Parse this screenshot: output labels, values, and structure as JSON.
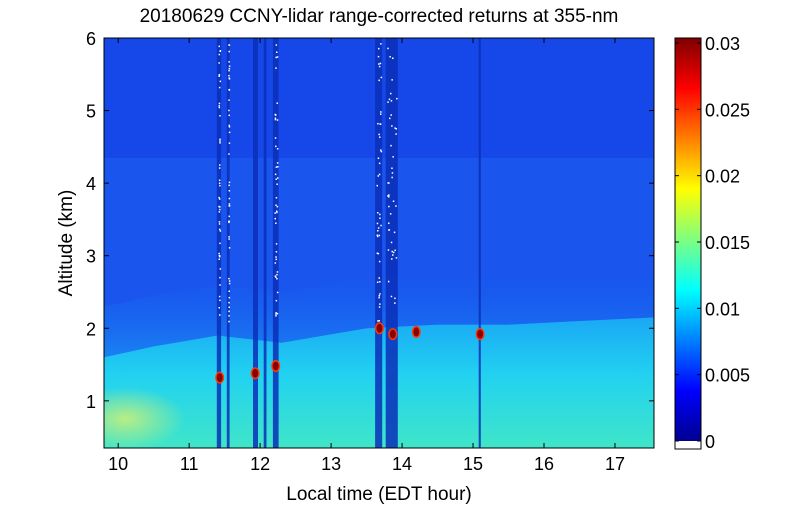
{
  "chart_data": {
    "type": "heatmap",
    "title": "20180629 CCNY-lidar range-corrected returns at 355-nm",
    "xlabel": "Local time (EDT hour)",
    "ylabel": "Altitude (km)",
    "xlim": [
      9.8,
      17.55
    ],
    "ylim": [
      0.35,
      6.0
    ],
    "x_ticks": [
      10,
      11,
      12,
      13,
      14,
      15,
      16,
      17
    ],
    "y_ticks": [
      1,
      2,
      3,
      4,
      5,
      6
    ],
    "colorbar": {
      "range": [
        0,
        0.03
      ],
      "ticks": [
        0,
        0.005,
        0.01,
        0.015,
        0.02,
        0.025,
        0.03
      ],
      "tick_labels": [
        "0",
        "0.005",
        "0.01",
        "0.015",
        "0.02",
        "0.025",
        "0.03"
      ],
      "colormap": "jet",
      "zero_color": "#ffffff"
    },
    "boundary_layer_top_km": [
      {
        "t": 9.8,
        "h": 1.6
      },
      {
        "t": 10.5,
        "h": 1.75
      },
      {
        "t": 11.4,
        "h": 1.9
      },
      {
        "t": 12.3,
        "h": 1.8
      },
      {
        "t": 13.5,
        "h": 2.0
      },
      {
        "t": 14.5,
        "h": 2.05
      },
      {
        "t": 15.5,
        "h": 2.05
      },
      {
        "t": 16.5,
        "h": 2.1
      },
      {
        "t": 17.55,
        "h": 2.15
      }
    ],
    "cloud_events": [
      {
        "t": 11.43,
        "h": 1.32
      },
      {
        "t": 11.93,
        "h": 1.38
      },
      {
        "t": 12.22,
        "h": 1.48
      },
      {
        "t": 13.68,
        "h": 2.0
      },
      {
        "t": 13.87,
        "h": 1.92
      },
      {
        "t": 14.2,
        "h": 1.95
      },
      {
        "t": 15.1,
        "h": 1.92
      }
    ],
    "signal_drop_intervals": [
      {
        "t0": 11.39,
        "t1": 11.45
      },
      {
        "t0": 11.53,
        "t1": 11.57
      },
      {
        "t0": 11.9,
        "t1": 11.97
      },
      {
        "t0": 12.05,
        "t1": 12.09
      },
      {
        "t0": 12.18,
        "t1": 12.26
      },
      {
        "t0": 13.62,
        "t1": 13.72
      },
      {
        "t0": 13.77,
        "t1": 13.94
      },
      {
        "t0": 15.08,
        "t1": 15.11
      }
    ]
  }
}
